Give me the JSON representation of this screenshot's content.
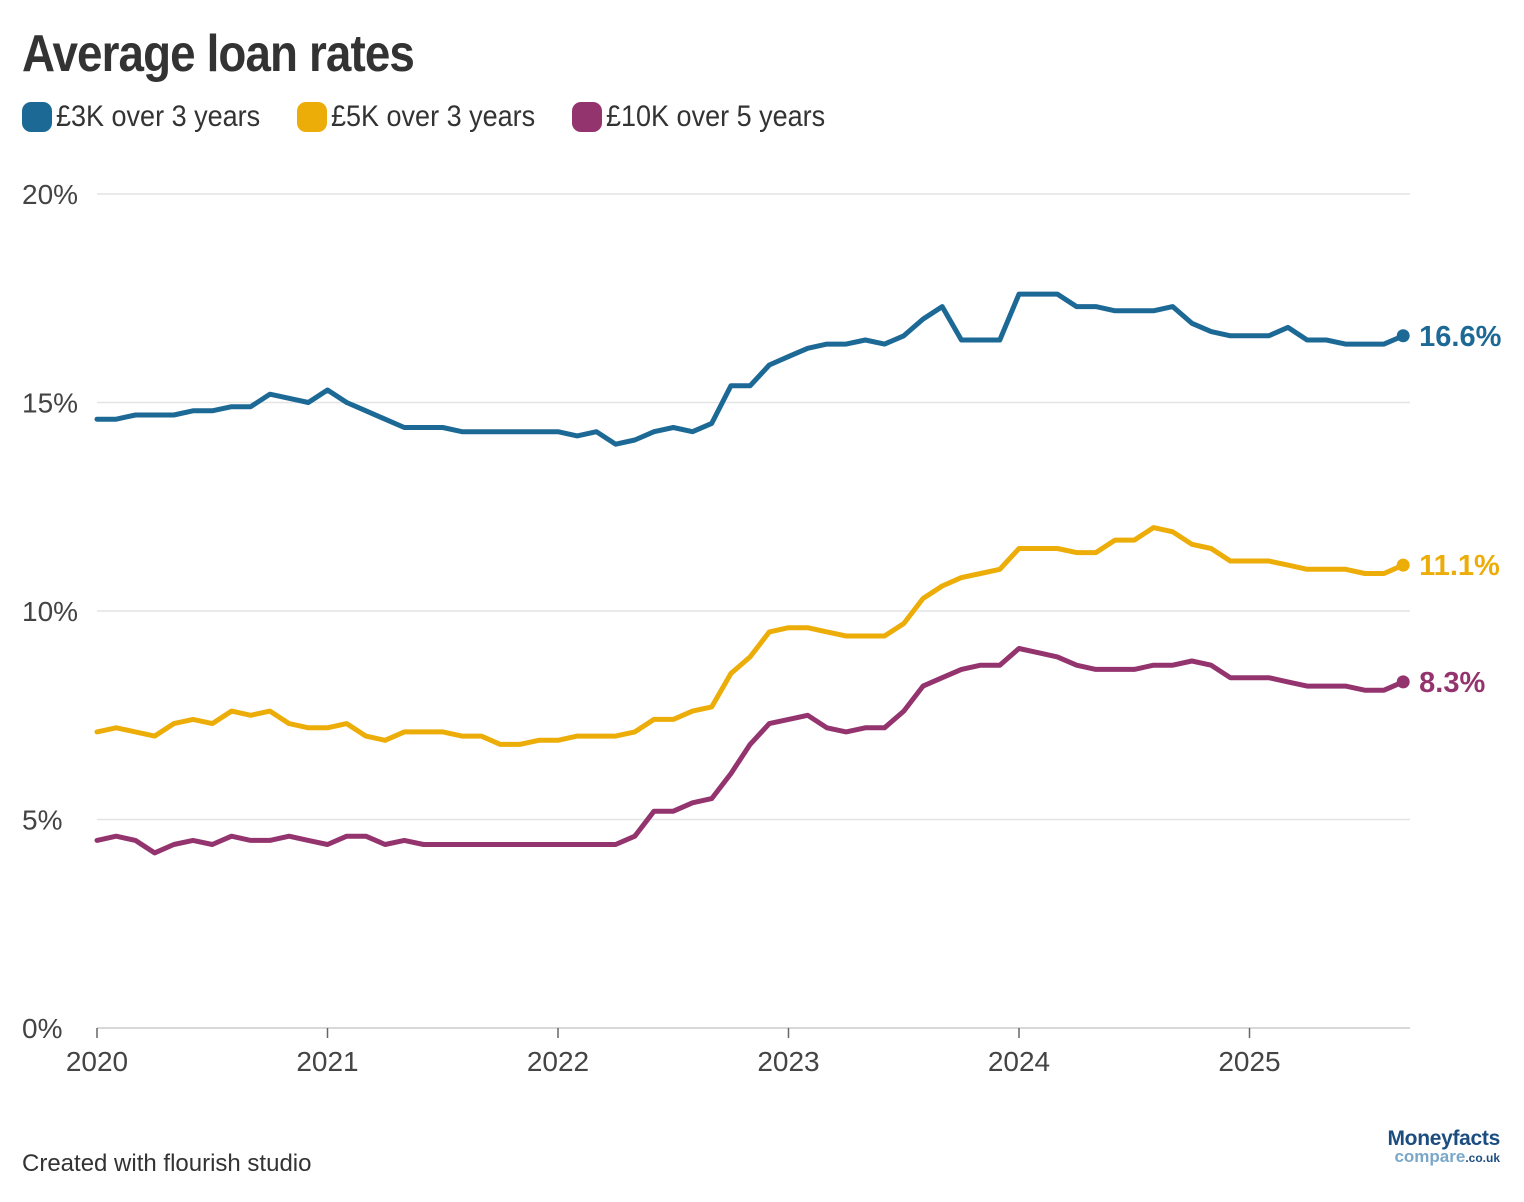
{
  "chart_data": {
    "type": "line",
    "title": "Average loan rates",
    "start": "2020-01",
    "x_axis_ticks": [
      "2020",
      "2021",
      "2022",
      "2023",
      "2024",
      "2025"
    ],
    "y_axis_ticks": [
      "0%",
      "5%",
      "10%",
      "15%",
      "20%"
    ],
    "ylim": [
      0,
      20
    ],
    "y_unit": "%",
    "grid": true,
    "legend_position": "top-left",
    "series": [
      {
        "name": "£3K over 3 years",
        "color": "#1d6996",
        "end_label": "16.6%",
        "values": [
          14.6,
          14.6,
          14.7,
          14.7,
          14.7,
          14.8,
          14.8,
          14.9,
          14.9,
          15.2,
          15.1,
          15.0,
          15.3,
          15.0,
          14.8,
          14.6,
          14.4,
          14.4,
          14.4,
          14.3,
          14.3,
          14.3,
          14.3,
          14.3,
          14.3,
          14.2,
          14.3,
          14.0,
          14.1,
          14.3,
          14.4,
          14.3,
          14.5,
          15.4,
          15.4,
          15.9,
          16.1,
          16.3,
          16.4,
          16.4,
          16.5,
          16.4,
          16.6,
          17.0,
          17.3,
          16.5,
          16.5,
          16.5,
          17.6,
          17.6,
          17.6,
          17.3,
          17.3,
          17.2,
          17.2,
          17.2,
          17.3,
          16.9,
          16.7,
          16.6,
          16.6,
          16.6,
          16.8,
          16.5,
          16.5,
          16.4,
          16.4,
          16.4,
          16.6
        ]
      },
      {
        "name": "£5K over 3 years",
        "color": "#edad08",
        "end_label": "11.1%",
        "values": [
          7.1,
          7.2,
          7.1,
          7.0,
          7.3,
          7.4,
          7.3,
          7.6,
          7.5,
          7.6,
          7.3,
          7.2,
          7.2,
          7.3,
          7.0,
          6.9,
          7.1,
          7.1,
          7.1,
          7.0,
          7.0,
          6.8,
          6.8,
          6.9,
          6.9,
          7.0,
          7.0,
          7.0,
          7.1,
          7.4,
          7.4,
          7.6,
          7.7,
          8.5,
          8.9,
          9.5,
          9.6,
          9.6,
          9.5,
          9.4,
          9.4,
          9.4,
          9.7,
          10.3,
          10.6,
          10.8,
          10.9,
          11.0,
          11.5,
          11.5,
          11.5,
          11.4,
          11.4,
          11.7,
          11.7,
          12.0,
          11.9,
          11.6,
          11.5,
          11.2,
          11.2,
          11.2,
          11.1,
          11.0,
          11.0,
          11.0,
          10.9,
          10.9,
          11.1
        ]
      },
      {
        "name": "£10K over 5 years",
        "color": "#94346e",
        "end_label": "8.3%",
        "values": [
          4.5,
          4.6,
          4.5,
          4.2,
          4.4,
          4.5,
          4.4,
          4.6,
          4.5,
          4.5,
          4.6,
          4.5,
          4.4,
          4.6,
          4.6,
          4.4,
          4.5,
          4.4,
          4.4,
          4.4,
          4.4,
          4.4,
          4.4,
          4.4,
          4.4,
          4.4,
          4.4,
          4.4,
          4.6,
          5.2,
          5.2,
          5.4,
          5.5,
          6.1,
          6.8,
          7.3,
          7.4,
          7.5,
          7.2,
          7.1,
          7.2,
          7.2,
          7.6,
          8.2,
          8.4,
          8.6,
          8.7,
          8.7,
          9.1,
          9.0,
          8.9,
          8.7,
          8.6,
          8.6,
          8.6,
          8.7,
          8.7,
          8.8,
          8.7,
          8.4,
          8.4,
          8.4,
          8.3,
          8.2,
          8.2,
          8.2,
          8.1,
          8.1,
          8.3
        ]
      }
    ]
  },
  "footer": {
    "credit": "Created with flourish studio"
  },
  "logo": {
    "line1": "Moneyfacts",
    "line2": "compare",
    "domain": ".co.uk"
  }
}
